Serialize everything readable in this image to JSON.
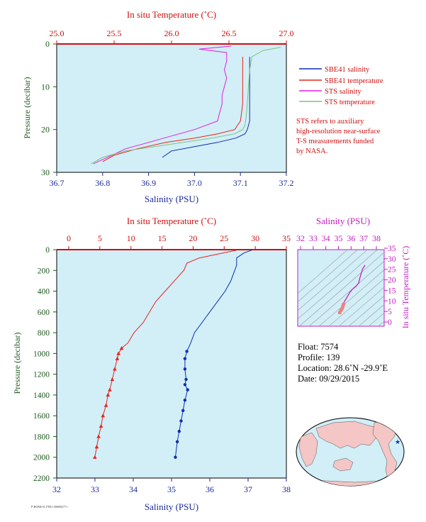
{
  "colors": {
    "plot_bg": "#d2eef7",
    "salinity": "#0a2fb4",
    "temperature": "#e8231d",
    "sts_salinity": "#e020e0",
    "sts_temperature": "#7ec27e",
    "pressure_axis": "#1e5a1e",
    "salinity_axis": "#1a2a9a",
    "temperature_axis": "#cc1111",
    "ts_axis": "#c020c0"
  },
  "top_panel": {
    "temp_axis_label": "In situ Temperature (˚C)",
    "sal_axis_label": "Salinity (PSU)",
    "pressure_label": "Pressure (decibar)",
    "temp_ticks": [
      "25.0",
      "25.5",
      "26.0",
      "26.5",
      "27.0"
    ],
    "sal_ticks": [
      "36.7",
      "36.8",
      "36.9",
      "37.0",
      "37.1",
      "37.2"
    ],
    "pres_ticks": [
      "0",
      "10",
      "20",
      "30"
    ],
    "legend": [
      {
        "label": "SBE41 salinity",
        "color": "#0a2fb4"
      },
      {
        "label": "SBE41 temperature",
        "color": "#e8231d"
      },
      {
        "label": "STS salinity",
        "color": "#e020e0"
      },
      {
        "label": "STS temperature",
        "color": "#7ec27e"
      }
    ],
    "note_lines": [
      "STS refers to auxiliary",
      "high-resolution near-surface",
      "T-S measurements funded",
      "by NASA."
    ]
  },
  "bottom_panel": {
    "temp_axis_label": "In situ Temperature (˚C)",
    "sal_axis_label": "Salinity (PSU)",
    "pressure_label": "Pressure (decibar)",
    "temp_ticks": [
      "0",
      "5",
      "10",
      "15",
      "20",
      "25",
      "30",
      "35"
    ],
    "sal_ticks": [
      "32",
      "33",
      "34",
      "35",
      "36",
      "37",
      "38"
    ],
    "pres_ticks": [
      "0",
      "200",
      "400",
      "600",
      "800",
      "1000",
      "1200",
      "1400",
      "1600",
      "1800",
      "2000",
      "2200"
    ]
  },
  "ts_panel": {
    "sal_axis_label": "Salinity (PSU)",
    "temp_axis_label": "In situ Temperature (˚C)",
    "sal_ticks": [
      "32",
      "33",
      "34",
      "35",
      "36",
      "37",
      "38"
    ],
    "temp_ticks": [
      "0",
      "5",
      "10",
      "15",
      "20",
      "25",
      "30",
      "35"
    ]
  },
  "float_info": {
    "float": "Float: 7574",
    "profile": "Profile: 139",
    "location": "Location: 28.6˚N -29.9˚E",
    "date": "Date: 09/29/2015"
  },
  "footer_text": "P-HOMO-0.17091/ D00092771",
  "chart_data": [
    {
      "type": "line",
      "panel": "top",
      "xlabel": "Salinity (PSU)",
      "x2label": "In situ Temperature (˚C)",
      "ylabel": "Pressure (decibar)",
      "xlim": [
        36.7,
        37.2
      ],
      "x2lim": [
        25.0,
        27.0
      ],
      "ylim": [
        30,
        0
      ],
      "series": [
        {
          "name": "SBE41 salinity",
          "axis": "salinity",
          "x": [
            37.12,
            37.12,
            37.12,
            37.12,
            37.12,
            37.115,
            37.11,
            37.09,
            37.05,
            37.0,
            36.95,
            36.93
          ],
          "y": [
            3,
            6,
            10,
            14,
            18,
            20,
            21,
            22,
            23,
            24,
            25,
            26.5
          ]
        },
        {
          "name": "SBE41 temperature",
          "axis": "temperature",
          "x": [
            26.62,
            26.62,
            26.62,
            26.62,
            26.6,
            26.55,
            26.4,
            26.2,
            25.95,
            25.7,
            25.5,
            25.4
          ],
          "y": [
            3,
            6,
            10,
            14,
            18,
            20,
            21,
            22,
            23,
            24.5,
            26,
            27.5
          ]
        },
        {
          "name": "STS salinity",
          "axis": "salinity",
          "x": [
            37.08,
            37.01,
            37.07,
            37.07,
            37.065,
            37.07,
            37.065,
            37.06,
            37.06,
            37.055,
            37.05,
            37.0,
            36.95,
            36.9,
            36.85,
            36.82,
            36.78
          ],
          "y": [
            0.5,
            1.2,
            2,
            4,
            6,
            8,
            10,
            12,
            14,
            16,
            18,
            20,
            21.5,
            23,
            24.5,
            26,
            28
          ]
        },
        {
          "name": "STS temperature",
          "axis": "temperature",
          "x": [
            26.95,
            26.8,
            26.7,
            26.68,
            26.67,
            26.66,
            26.65,
            26.64,
            26.62,
            26.55,
            26.35,
            26.1,
            25.85,
            25.6,
            25.4,
            25.3
          ],
          "y": [
            0.8,
            1.5,
            3,
            6,
            10,
            14,
            17,
            19,
            20,
            21,
            22,
            23,
            24,
            25,
            26.5,
            28
          ]
        }
      ]
    },
    {
      "type": "line",
      "panel": "bottom",
      "xlabel": "Salinity (PSU)",
      "x2label": "In situ Temperature (˚C)",
      "ylabel": "Pressure (decibar)",
      "xlim": [
        32,
        38
      ],
      "x2lim": [
        0,
        35
      ],
      "ylim": [
        2200,
        0
      ],
      "series": [
        {
          "name": "SBE41 salinity",
          "axis": "salinity",
          "x": [
            37.1,
            36.9,
            36.7,
            36.7,
            36.6,
            36.55,
            36.4,
            36.2,
            36.0,
            35.8,
            35.6,
            35.5,
            35.4,
            35.35,
            35.35,
            35.38,
            35.35,
            35.42,
            35.35,
            35.3,
            35.25,
            35.2,
            35.15,
            35.1
          ],
          "y": [
            5,
            30,
            80,
            150,
            250,
            300,
            400,
            500,
            600,
            700,
            800,
            900,
            980,
            1050,
            1150,
            1250,
            1300,
            1350,
            1450,
            1550,
            1650,
            1750,
            1850,
            2000
          ]
        },
        {
          "name": "SBE41 temperature",
          "axis": "temperature",
          "x": [
            27.0,
            25.0,
            21.0,
            19.0,
            18.5,
            17.0,
            15.5,
            14.0,
            13.0,
            12.0,
            10.5,
            9.5,
            8.5,
            8.0,
            7.8,
            7.4,
            7.0,
            6.6,
            6.3,
            6.0,
            5.5,
            5.2,
            4.8,
            4.5,
            4.2
          ],
          "y": [
            5,
            30,
            80,
            130,
            200,
            300,
            400,
            500,
            600,
            700,
            800,
            900,
            950,
            1000,
            1050,
            1150,
            1250,
            1350,
            1400,
            1500,
            1600,
            1700,
            1800,
            1900,
            2000
          ]
        }
      ]
    },
    {
      "type": "line",
      "panel": "ts",
      "xlabel": "Salinity (PSU)",
      "ylabel": "In situ Temperature (˚C)",
      "xlim": [
        32,
        38
      ],
      "ylim": [
        0,
        35
      ],
      "series": [
        {
          "name": "T-S profile",
          "x": [
            35.1,
            35.2,
            35.3,
            35.35,
            35.4,
            35.5,
            35.7,
            35.9,
            36.1,
            36.4,
            36.6,
            36.7,
            36.9,
            37.1
          ],
          "y": [
            4.5,
            5.5,
            6.5,
            7.5,
            8.5,
            10,
            12,
            14,
            15.5,
            17,
            18.5,
            21,
            25,
            27
          ]
        }
      ]
    }
  ]
}
